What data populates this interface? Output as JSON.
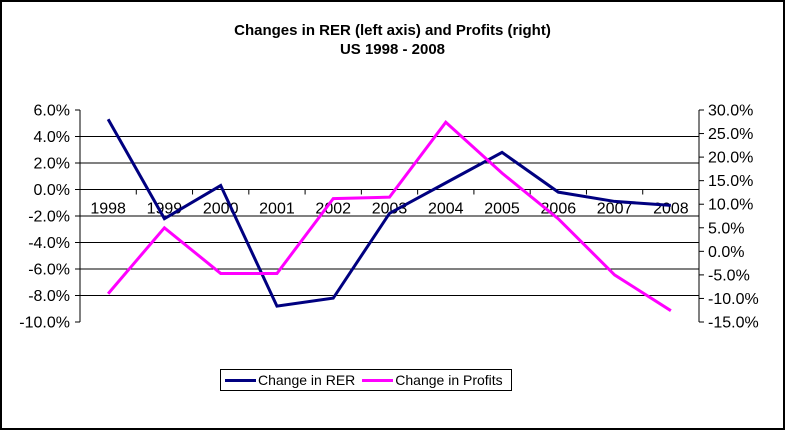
{
  "title": {
    "line1": "Changes in RER (left axis) and Profits (right)",
    "line2": "US 1998 - 2008"
  },
  "legend": {
    "items": [
      {
        "label": "Change in RER",
        "color": "#000080"
      },
      {
        "label": "Change in Profits",
        "color": "#FF00FF"
      }
    ]
  },
  "chart_data": {
    "type": "line",
    "title": "Changes in RER (left axis) and Profits (right)",
    "subtitle": "US 1998 - 2008",
    "categories": [
      "1998",
      "1999",
      "2000",
      "2001",
      "2002",
      "2003",
      "2004",
      "2005",
      "2006",
      "2007",
      "2008"
    ],
    "series": [
      {
        "name": "Change in RER",
        "axis": "left",
        "color": "#000080",
        "values": [
          5.3,
          -2.2,
          0.3,
          -8.8,
          -8.2,
          -1.8,
          0.5,
          2.8,
          -0.2,
          -0.9,
          -1.2
        ]
      },
      {
        "name": "Change in Profits",
        "axis": "right",
        "color": "#FF00FF",
        "values": [
          -9.0,
          5.0,
          -4.7,
          -4.7,
          11.2,
          11.5,
          27.4,
          16.6,
          6.9,
          -5.0,
          -12.6
        ]
      }
    ],
    "left_axis": {
      "min": -10,
      "max": 6,
      "step": 2,
      "ticks": [
        6,
        4,
        2,
        0,
        -2,
        -4,
        -6,
        -8,
        -10
      ],
      "tick_labels": [
        "6.0%",
        "4.0%",
        "2.0%",
        "0.0%",
        "-2.0%",
        "-4.0%",
        "-6.0%",
        "-8.0%",
        "-10.0%"
      ]
    },
    "right_axis": {
      "min": -15,
      "max": 30,
      "step": 5,
      "ticks": [
        30,
        25,
        20,
        15,
        10,
        5,
        0,
        -5,
        -10,
        -15
      ],
      "tick_labels": [
        "30.0%",
        "25.0%",
        "20.0%",
        "15.0%",
        "10.0%",
        "5.0%",
        "0.0%",
        "-5.0%",
        "-10.0%",
        "-15.0%"
      ]
    },
    "grid": "horizontal gridlines from left (primary) axis only",
    "legend_position": "bottom"
  }
}
